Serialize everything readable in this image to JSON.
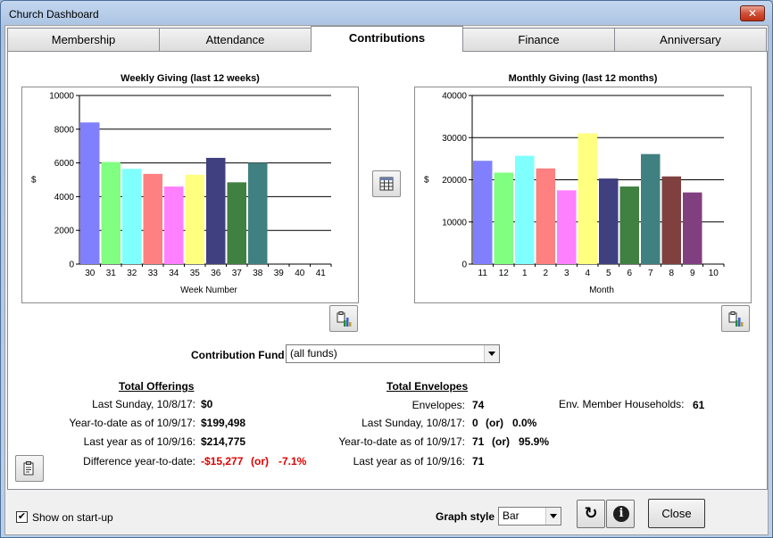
{
  "window": {
    "title": "Church Dashboard",
    "close_glyph": "✕"
  },
  "tabs": [
    {
      "label": "Membership",
      "active": false
    },
    {
      "label": "Attendance",
      "active": false
    },
    {
      "label": "Contributions",
      "active": true
    },
    {
      "label": "Finance",
      "active": false
    },
    {
      "label": "Anniversary",
      "active": false
    }
  ],
  "chart_data": [
    {
      "type": "bar",
      "title": "Weekly Giving (last 12 weeks)",
      "xlabel": "Week Number",
      "ylabel": "$",
      "ylim": [
        0,
        10000
      ],
      "yticks": [
        "0",
        "2000",
        "4000",
        "6000",
        "8000",
        "10000"
      ],
      "categories": [
        "30",
        "31",
        "32",
        "33",
        "34",
        "35",
        "36",
        "37",
        "38",
        "39",
        "40",
        "41"
      ],
      "values": [
        8400,
        6050,
        5650,
        5350,
        4600,
        5300,
        6300,
        4850,
        6000,
        0,
        0,
        0
      ],
      "colors": [
        "#8080ff",
        "#80ff80",
        "#80ffff",
        "#ff8080",
        "#ff80ff",
        "#ffff80",
        "#404080",
        "#408040",
        "#408080",
        "#804040",
        "#804080",
        "#808040"
      ],
      "grid": true
    },
    {
      "type": "bar",
      "title": "Monthly Giving (last 12 months)",
      "xlabel": "Month",
      "ylabel": "$",
      "ylim": [
        0,
        40000
      ],
      "yticks": [
        "0",
        "10000",
        "20000",
        "30000",
        "40000"
      ],
      "categories": [
        "11",
        "12",
        "1",
        "2",
        "3",
        "4",
        "5",
        "6",
        "7",
        "8",
        "9",
        "10"
      ],
      "values": [
        24500,
        21700,
        25700,
        22700,
        17500,
        31000,
        20300,
        18400,
        26100,
        20800,
        17000,
        0
      ],
      "colors": [
        "#8080ff",
        "#80ff80",
        "#80ffff",
        "#ff8080",
        "#ff80ff",
        "#ffff80",
        "#404080",
        "#408040",
        "#408080",
        "#804040",
        "#804080",
        "#808040"
      ],
      "grid": true
    }
  ],
  "fund": {
    "label": "Contribution Fund",
    "value": "(all funds)"
  },
  "offerings": {
    "header": "Total Offerings",
    "rows": [
      {
        "label": "Last Sunday, 10/8/17:",
        "value": "$0"
      },
      {
        "label": "Year-to-date as of 10/9/17:",
        "value": "$199,498"
      },
      {
        "label": "Last year as of 10/9/16:",
        "value": "$214,775"
      }
    ],
    "difference": {
      "label": "Difference year-to-date:",
      "amount": "-$15,277",
      "or": "(or)",
      "percent": "-7.1%"
    }
  },
  "envelopes": {
    "header": "Total Envelopes",
    "envelopes": {
      "label": "Envelopes:",
      "value": "74"
    },
    "last_sunday": {
      "label": "Last Sunday, 10/8/17:",
      "value": "0",
      "or": "(or)",
      "percent": "0.0%"
    },
    "ytd": {
      "label": "Year-to-date as of 10/9/17:",
      "value": "71",
      "or": "(or)",
      "percent": "95.9%"
    },
    "last_year": {
      "label": "Last year as of 10/9/16:",
      "value": "71"
    },
    "households": {
      "label": "Env. Member Households:",
      "value": "61"
    }
  },
  "footer": {
    "show_on_startup": {
      "label": "Show on start-up",
      "checked": true,
      "mark": "✔"
    },
    "graph_style": {
      "label": "Graph style",
      "value": "Bar"
    },
    "refresh_glyph": "↻",
    "info_glyph": "i",
    "close_label": "Close"
  }
}
